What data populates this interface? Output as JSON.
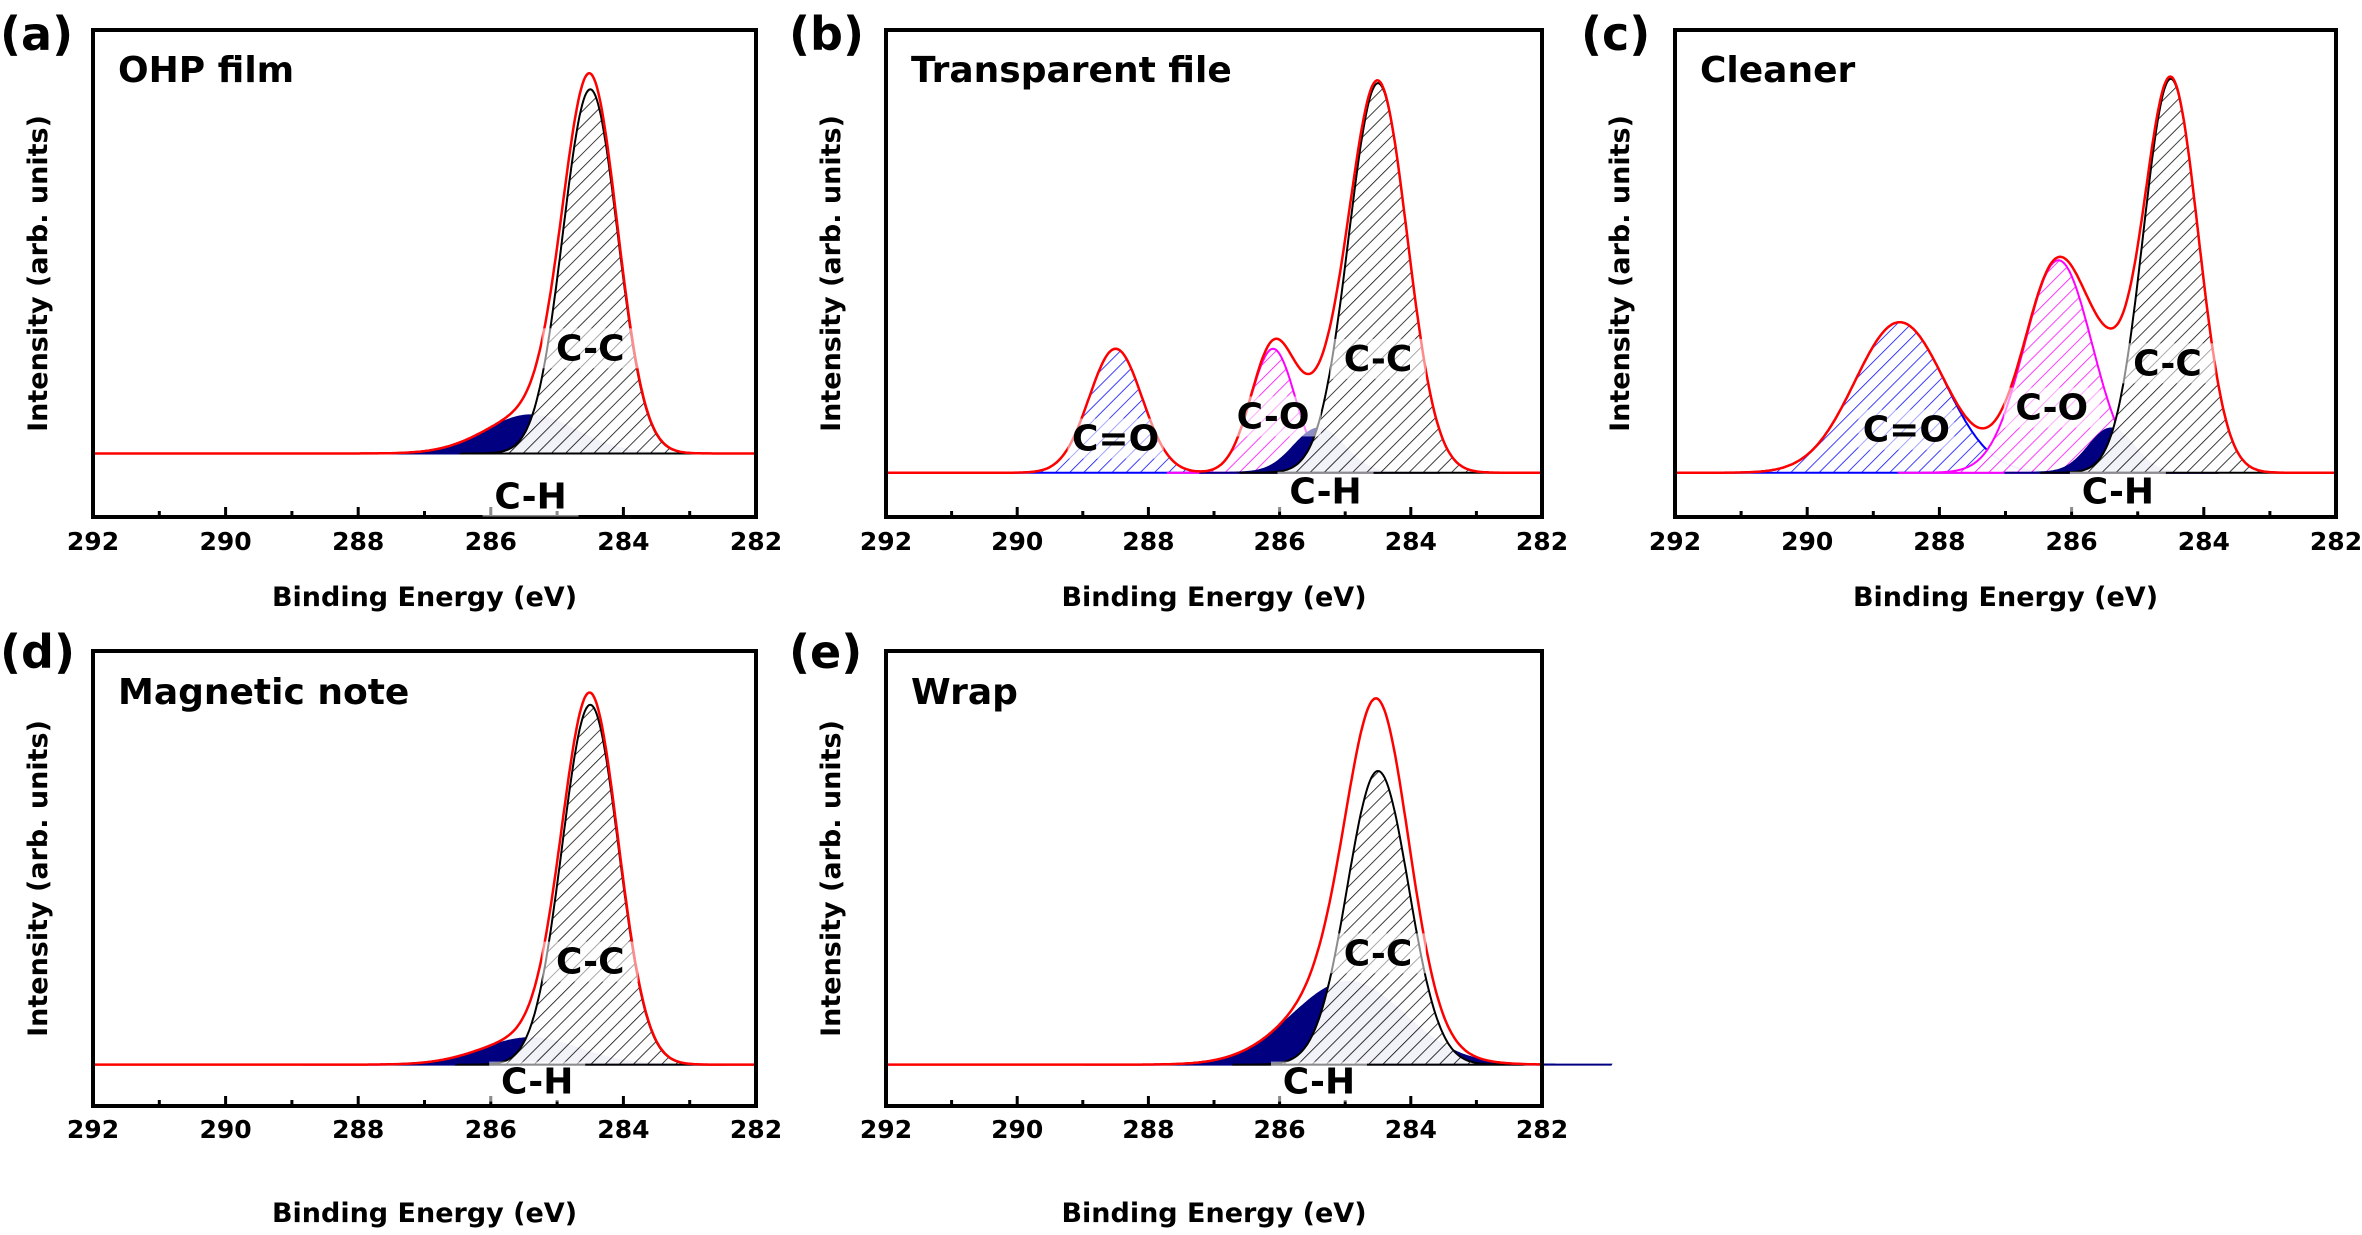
{
  "chart_data": [
    {
      "panel_label": "(a)",
      "title": "OHP film",
      "type": "area",
      "xlabel": "Binding Energy (eV)",
      "ylabel": "Intensity (arb. units)",
      "xlim": [
        292,
        282
      ],
      "ylim": [
        -0.15,
        1.0
      ],
      "xticks": [
        292,
        290,
        288,
        286,
        284,
        282
      ],
      "envelope_color": "#ff0000",
      "components": [
        {
          "name": "C-H",
          "center": 285.4,
          "height": 0.09,
          "fwhm": 1.6,
          "color": "#000080",
          "fill": "solid"
        },
        {
          "name": "C-C",
          "center": 284.5,
          "height": 0.86,
          "fwhm": 0.97,
          "color": "#000000",
          "fill": "hatch"
        }
      ]
    },
    {
      "panel_label": "(b)",
      "title": "Transparent file",
      "type": "area",
      "xlabel": "Binding Energy (eV)",
      "ylabel": "Intensity (arb. units)",
      "xlim": [
        292,
        282
      ],
      "ylim": [
        -0.1,
        1.0
      ],
      "xticks": [
        292,
        290,
        288,
        286,
        284,
        282
      ],
      "envelope_color": "#ff0000",
      "components": [
        {
          "name": "C=O",
          "center": 288.5,
          "height": 0.28,
          "fwhm": 0.95,
          "color": "#0000ff",
          "fill": "hatch"
        },
        {
          "name": "C-O",
          "center": 286.1,
          "height": 0.28,
          "fwhm": 0.8,
          "color": "#ff00ff",
          "fill": "hatch"
        },
        {
          "name": "C-H",
          "center": 285.4,
          "height": 0.1,
          "fwhm": 0.9,
          "color": "#000080",
          "fill": "solid"
        },
        {
          "name": "C-C",
          "center": 284.5,
          "height": 0.88,
          "fwhm": 1.05,
          "color": "#000000",
          "fill": "hatch"
        }
      ]
    },
    {
      "panel_label": "(c)",
      "title": "Cleaner",
      "type": "area",
      "xlabel": "Binding Energy (eV)",
      "ylabel": "Intensity (arb. units)",
      "xlim": [
        292,
        282
      ],
      "ylim": [
        -0.1,
        1.0
      ],
      "xticks": [
        292,
        290,
        288,
        286,
        284,
        282
      ],
      "envelope_color": "#ff0000",
      "components": [
        {
          "name": "C=O",
          "center": 288.6,
          "height": 0.34,
          "fwhm": 1.6,
          "color": "#0000ff",
          "fill": "hatch"
        },
        {
          "name": "C-O",
          "center": 286.2,
          "height": 0.48,
          "fwhm": 1.2,
          "color": "#ff00ff",
          "fill": "hatch"
        },
        {
          "name": "C-H",
          "center": 285.4,
          "height": 0.1,
          "fwhm": 0.8,
          "color": "#000080",
          "fill": "solid"
        },
        {
          "name": "C-C",
          "center": 284.5,
          "height": 0.89,
          "fwhm": 0.98,
          "color": "#000000",
          "fill": "hatch"
        }
      ]
    },
    {
      "panel_label": "(d)",
      "title": "Magnetic note",
      "type": "area",
      "xlabel": "Binding Energy (eV)",
      "ylabel": "Intensity (arb. units)",
      "xlim": [
        292,
        282
      ],
      "ylim": [
        -0.1,
        1.0
      ],
      "xticks": [
        292,
        290,
        288,
        286,
        284,
        282
      ],
      "envelope_color": "#ff0000",
      "components": [
        {
          "name": "C-H",
          "center": 285.4,
          "height": 0.064,
          "fwhm": 1.7,
          "color": "#000080",
          "fill": "solid"
        },
        {
          "name": "C-C",
          "center": 284.5,
          "height": 0.87,
          "fwhm": 1.0,
          "color": "#000000",
          "fill": "hatch"
        }
      ]
    },
    {
      "panel_label": "(e)",
      "title": "Wrap",
      "type": "area",
      "xlabel": "Binding Energy (eV)",
      "ylabel": "Intensity (arb. units)",
      "xlim": [
        292,
        282
      ],
      "ylim": [
        -0.1,
        1.0
      ],
      "xticks": [
        292,
        290,
        288,
        286,
        284,
        282
      ],
      "envelope_color": "#ff0000",
      "components": [
        {
          "name": "C-H",
          "center": 284.95,
          "height": 0.2,
          "fwhm": 2.0,
          "color": "#000080",
          "fill": "solid"
        },
        {
          "name": "C-C",
          "center": 284.5,
          "height": 0.71,
          "fwhm": 1.1,
          "color": "#000000",
          "fill": "hatch"
        }
      ]
    }
  ]
}
